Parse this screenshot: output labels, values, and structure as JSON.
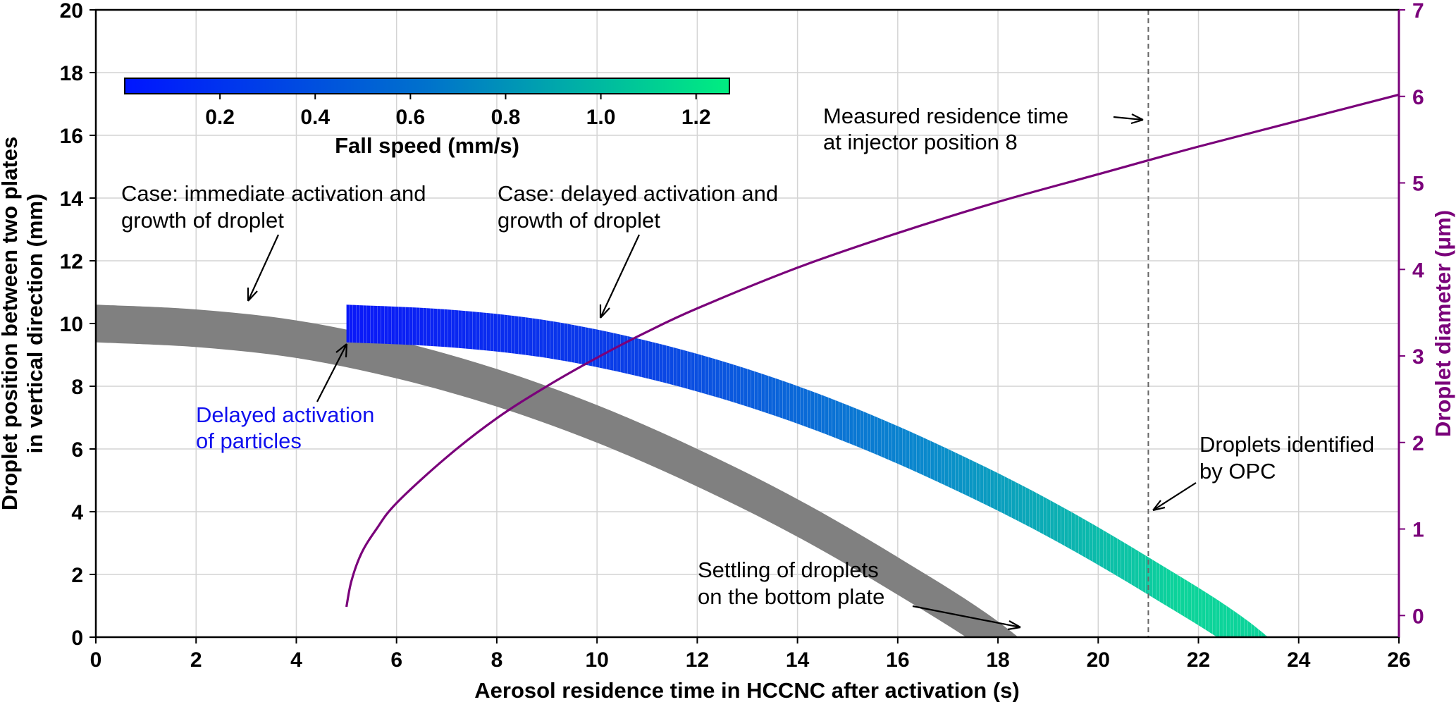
{
  "chart_data": {
    "type": "line",
    "xlabel": "Aerosol residence time in HCCNC after activation (s)",
    "ylabel": [
      "Droplet position between two plates",
      "in vertical direction (mm)"
    ],
    "y2label": "Droplet diameter (μm)",
    "xlim": [
      0,
      26
    ],
    "ylim": [
      0,
      20
    ],
    "y2lim": [
      -0.25,
      7
    ],
    "xticks": [
      "0",
      "2",
      "4",
      "6",
      "8",
      "10",
      "12",
      "14",
      "16",
      "18",
      "20",
      "22",
      "24",
      "26"
    ],
    "yticks": [
      "0",
      "2",
      "4",
      "6",
      "8",
      "10",
      "12",
      "14",
      "16",
      "18",
      "20"
    ],
    "y2ticks": [
      "0",
      "1",
      "2",
      "3",
      "4",
      "5",
      "6",
      "7"
    ],
    "grid": true,
    "colors": {
      "grey_band": "#808080",
      "diameter_line": "#7a007a",
      "delayed_label": "#1010ee",
      "colorbar_start": "#0015ff",
      "colorbar_end": "#00ee80",
      "marker_line": "#666666"
    },
    "colorbar": {
      "label": "Fall speed (mm/s)",
      "range": [
        0,
        1.27
      ],
      "ticks": [
        "0.2",
        "0.4",
        "0.6",
        "0.8",
        "1.0",
        "1.2"
      ],
      "tick_values": [
        0.2,
        0.4,
        0.6,
        0.8,
        1.0,
        1.2
      ]
    },
    "series": [
      {
        "kind": "band",
        "x": [
          0,
          2,
          4,
          6,
          8,
          10,
          12,
          14,
          16,
          18,
          19.8
        ],
        "y_upper": [
          10.6,
          10.45,
          10.1,
          9.45,
          8.55,
          7.4,
          6.0,
          4.4,
          2.55,
          0.5,
          -1.9
        ],
        "y_lower": [
          9.4,
          9.25,
          8.9,
          8.25,
          7.35,
          6.2,
          4.8,
          3.2,
          1.35,
          -0.7,
          -3.1
        ]
      },
      {
        "kind": "band",
        "x": [
          5,
          7,
          9,
          11,
          13,
          15,
          17,
          19,
          21,
          23,
          24.7
        ],
        "y_upper": [
          10.6,
          10.45,
          10.1,
          9.45,
          8.55,
          7.4,
          6.0,
          4.4,
          2.55,
          0.5,
          -1.9
        ],
        "y_lower": [
          9.4,
          9.25,
          8.9,
          8.25,
          7.35,
          6.2,
          4.8,
          3.2,
          1.35,
          -0.7,
          -3.1
        ]
      },
      {
        "kind": "line",
        "axis": "right",
        "x": [
          5,
          5.1,
          5.3,
          5.6,
          6,
          7,
          8,
          9,
          10,
          11,
          12,
          14,
          16,
          18,
          20,
          22,
          24,
          26
        ],
        "y": [
          0.1,
          0.4,
          0.72,
          1.0,
          1.3,
          1.83,
          2.28,
          2.65,
          2.98,
          3.28,
          3.55,
          4.02,
          4.42,
          4.78,
          5.1,
          5.42,
          5.72,
          6.02
        ]
      }
    ],
    "vline": {
      "x": 21
    },
    "annotations": [
      {
        "lines": [
          "Case: immediate activation and",
          "growth of droplet"
        ]
      },
      {
        "lines": [
          "Case: delayed activation and",
          "growth of droplet"
        ]
      },
      {
        "lines": [
          "Delayed activation",
          "of particles"
        ]
      },
      {
        "lines": [
          "Measured residence time",
          "at injector position 8"
        ]
      },
      {
        "lines": [
          "Droplets identified",
          "by OPC"
        ]
      },
      {
        "lines": [
          "Settling of droplets",
          "on the bottom plate"
        ]
      }
    ]
  }
}
